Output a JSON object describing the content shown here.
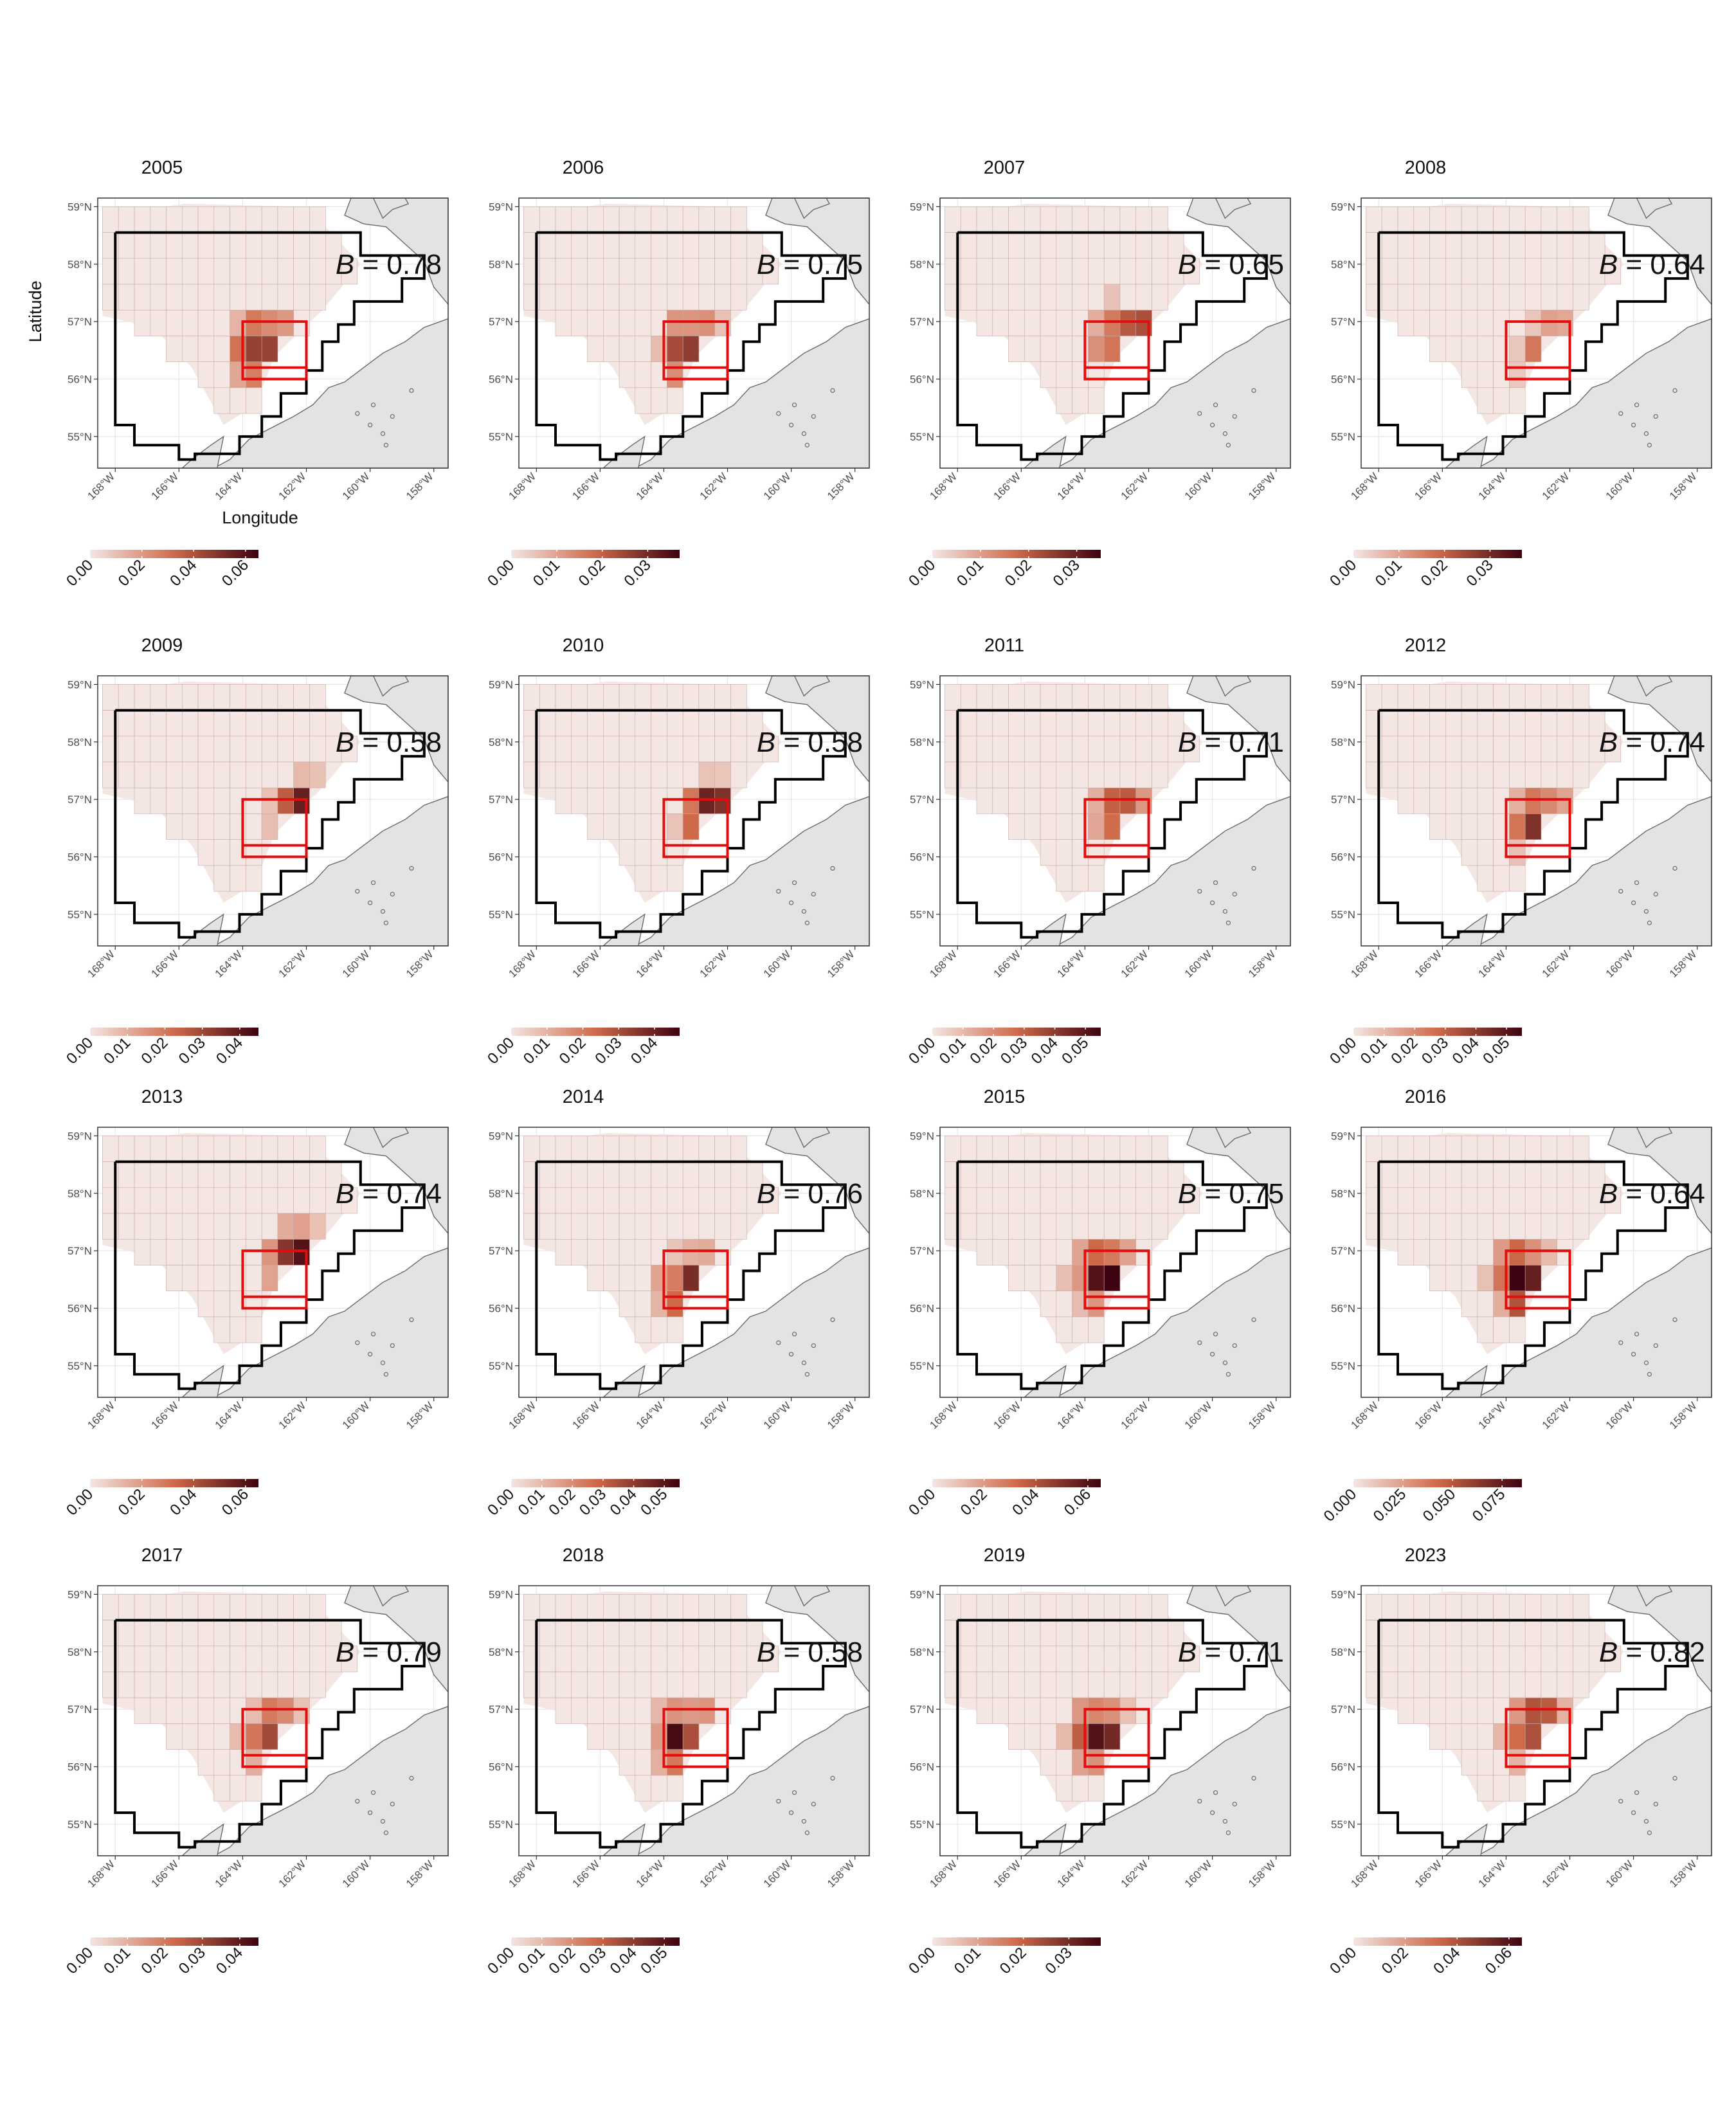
{
  "axes": {
    "x_label": "Longitude",
    "y_label": "Latitude",
    "lat_ticks": [
      "55°N",
      "56°N",
      "57°N",
      "58°N",
      "59°N"
    ],
    "lon_ticks": [
      "168°W",
      "166°W",
      "164°W",
      "162°W",
      "160°W",
      "158°W"
    ]
  },
  "b_prefix": "B",
  "colors": {
    "low": "#f3e6e3",
    "mid": "#cf6a4a",
    "high": "#3d0310",
    "grid_line": "#c9a9a6",
    "box": "#e30d0d",
    "boundary": "#000000",
    "land": "#e3e3e3",
    "land_edge": "#6a6a6a"
  },
  "chart_data": [
    {
      "type": "heatmap",
      "year": "2005",
      "title": "2005",
      "b_value": "0.78",
      "legend_ticks": [
        "0.00",
        "0.02",
        "0.04",
        "0.06"
      ],
      "legend_max": 0.065,
      "hotspot": [
        163.3,
        56.5
      ],
      "peak": 0.065
    },
    {
      "type": "heatmap",
      "year": "2006",
      "title": "2006",
      "b_value": "0.75",
      "legend_ticks": [
        "0.00",
        "0.01",
        "0.02",
        "0.03"
      ],
      "legend_max": 0.037,
      "hotspot": [
        163.0,
        56.5
      ],
      "peak": 0.037
    },
    {
      "type": "heatmap",
      "year": "2007",
      "title": "2007",
      "b_value": "0.65",
      "legend_ticks": [
        "0.00",
        "0.01",
        "0.02",
        "0.03"
      ],
      "legend_max": 0.035,
      "hotspot": [
        162.7,
        56.7
      ],
      "peak": 0.035
    },
    {
      "type": "heatmap",
      "year": "2008",
      "title": "2008",
      "b_value": "0.64",
      "legend_ticks": [
        "0.00",
        "0.01",
        "0.02",
        "0.03"
      ],
      "legend_max": 0.037,
      "hotspot": [
        162.5,
        56.4
      ],
      "peak": 0.037
    },
    {
      "type": "heatmap",
      "year": "2009",
      "title": "2009",
      "b_value": "0.58",
      "legend_ticks": [
        "0.00",
        "0.01",
        "0.02",
        "0.03",
        "0.04"
      ],
      "legend_max": 0.045,
      "hotspot": [
        162.1,
        56.7
      ],
      "peak": 0.045
    },
    {
      "type": "heatmap",
      "year": "2010",
      "title": "2010",
      "b_value": "0.58",
      "legend_ticks": [
        "0.00",
        "0.01",
        "0.02",
        "0.03",
        "0.04"
      ],
      "legend_max": 0.047,
      "hotspot": [
        162.4,
        56.7
      ],
      "peak": 0.047
    },
    {
      "type": "heatmap",
      "year": "2011",
      "title": "2011",
      "b_value": "0.71",
      "legend_ticks": [
        "0.00",
        "0.01",
        "0.02",
        "0.03",
        "0.04",
        "0.05"
      ],
      "legend_max": 0.055,
      "hotspot": [
        162.7,
        56.6
      ],
      "peak": 0.055
    },
    {
      "type": "heatmap",
      "year": "2012",
      "title": "2012",
      "b_value": "0.74",
      "legend_ticks": [
        "0.00",
        "0.01",
        "0.02",
        "0.03",
        "0.04",
        "0.05"
      ],
      "legend_max": 0.055,
      "hotspot": [
        162.8,
        56.5
      ],
      "peak": 0.055
    },
    {
      "type": "heatmap",
      "year": "2013",
      "title": "2013",
      "b_value": "0.74",
      "legend_ticks": [
        "0.00",
        "0.02",
        "0.04",
        "0.06"
      ],
      "legend_max": 0.065,
      "hotspot": [
        162.2,
        56.8
      ],
      "peak": 0.065
    },
    {
      "type": "heatmap",
      "year": "2014",
      "title": "2014",
      "b_value": "0.76",
      "legend_ticks": [
        "0.00",
        "0.01",
        "0.02",
        "0.03",
        "0.04",
        "0.05"
      ],
      "legend_max": 0.055,
      "hotspot": [
        163.1,
        56.4
      ],
      "peak": 0.055
    },
    {
      "type": "heatmap",
      "year": "2015",
      "title": "2015",
      "b_value": "0.75",
      "legend_ticks": [
        "0.00",
        "0.02",
        "0.04",
        "0.06"
      ],
      "legend_max": 0.065,
      "hotspot": [
        163.4,
        56.6
      ],
      "peak": 0.065
    },
    {
      "type": "heatmap",
      "year": "2016",
      "title": "2016",
      "b_value": "0.64",
      "legend_ticks": [
        "0.000",
        "0.025",
        "0.050",
        "0.075"
      ],
      "legend_max": 0.085,
      "hotspot": [
        163.5,
        56.5
      ],
      "peak": 0.085
    },
    {
      "type": "heatmap",
      "year": "2017",
      "title": "2017",
      "b_value": "0.79",
      "legend_ticks": [
        "0.00",
        "0.01",
        "0.02",
        "0.03",
        "0.04"
      ],
      "legend_max": 0.045,
      "hotspot": [
        163.0,
        56.5
      ],
      "peak": 0.045
    },
    {
      "type": "heatmap",
      "year": "2018",
      "title": "2018",
      "b_value": "0.58",
      "legend_ticks": [
        "0.00",
        "0.01",
        "0.02",
        "0.03",
        "0.04",
        "0.05"
      ],
      "legend_max": 0.055,
      "hotspot": [
        163.3,
        56.5
      ],
      "peak": 0.055
    },
    {
      "type": "heatmap",
      "year": "2019",
      "title": "2019",
      "b_value": "0.71",
      "legend_ticks": [
        "0.00",
        "0.01",
        "0.02",
        "0.03"
      ],
      "legend_max": 0.037,
      "hotspot": [
        163.5,
        56.5
      ],
      "peak": 0.037
    },
    {
      "type": "heatmap",
      "year": "2023",
      "title": "2023",
      "b_value": "0.82",
      "legend_ticks": [
        "0.00",
        "0.02",
        "0.04",
        "0.06"
      ],
      "legend_max": 0.065,
      "hotspot": [
        163.0,
        56.6
      ],
      "peak": 0.065
    }
  ]
}
